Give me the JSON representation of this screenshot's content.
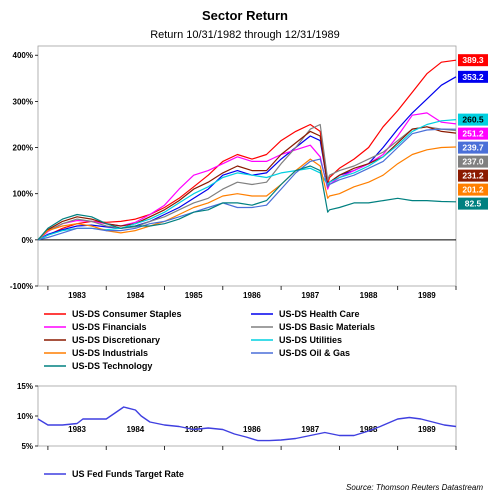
{
  "chart_data": [
    {
      "type": "line",
      "title": "Sector Return",
      "subtitle": "Return 10/31/1982 through 12/31/1989",
      "x_ticks": [
        "1983",
        "1984",
        "1985",
        "1986",
        "1987",
        "1988",
        "1989"
      ],
      "y_ticks": [
        "-100%",
        "0%",
        "100%",
        "200%",
        "300%",
        "400%"
      ],
      "ylim": [
        -100,
        420
      ],
      "xlim": [
        1982.83,
        1990.0
      ],
      "grid": false,
      "legend_position": "bottom",
      "series": [
        {
          "name": "US-DS Consumer Staples",
          "color": "#ff0000",
          "end_label": "389.3",
          "x": [
            1982.83,
            1983.0,
            1983.25,
            1983.5,
            1983.75,
            1984.0,
            1984.25,
            1984.5,
            1984.75,
            1985.0,
            1985.25,
            1985.5,
            1985.75,
            1986.0,
            1986.25,
            1986.5,
            1986.75,
            1987.0,
            1987.25,
            1987.5,
            1987.67,
            1987.8,
            1987.83,
            1988.0,
            1988.25,
            1988.5,
            1988.75,
            1989.0,
            1989.25,
            1989.5,
            1989.75,
            1990.0
          ],
          "y": [
            0,
            10,
            25,
            35,
            40,
            38,
            40,
            45,
            55,
            70,
            90,
            115,
            140,
            170,
            185,
            175,
            185,
            215,
            235,
            250,
            235,
            120,
            135,
            155,
            175,
            200,
            245,
            280,
            320,
            360,
            385,
            389.3
          ]
        },
        {
          "name": "US-DS Health Care",
          "color": "#0000ee",
          "end_label": "353.2",
          "x": [
            1982.83,
            1983.0,
            1983.25,
            1983.5,
            1983.75,
            1984.0,
            1984.25,
            1984.5,
            1984.75,
            1985.0,
            1985.25,
            1985.5,
            1985.75,
            1986.0,
            1986.25,
            1986.5,
            1986.75,
            1987.0,
            1987.25,
            1987.5,
            1987.67,
            1987.8,
            1987.83,
            1988.0,
            1988.25,
            1988.5,
            1988.75,
            1989.0,
            1989.25,
            1989.5,
            1989.75,
            1990.0
          ],
          "y": [
            0,
            12,
            22,
            30,
            32,
            28,
            25,
            30,
            40,
            55,
            70,
            90,
            110,
            140,
            150,
            140,
            145,
            175,
            200,
            225,
            215,
            120,
            125,
            140,
            150,
            165,
            200,
            240,
            275,
            305,
            335,
            353.2
          ]
        },
        {
          "name": "US-DS Financials",
          "color": "#ff00ff",
          "end_label": "251.2",
          "x": [
            1982.83,
            1983.0,
            1983.25,
            1983.5,
            1983.75,
            1984.0,
            1984.25,
            1984.5,
            1984.75,
            1985.0,
            1985.25,
            1985.5,
            1985.75,
            1986.0,
            1986.25,
            1986.5,
            1986.75,
            1987.0,
            1987.25,
            1987.5,
            1987.67,
            1987.8,
            1987.83,
            1988.0,
            1988.25,
            1988.5,
            1988.75,
            1989.0,
            1989.25,
            1989.5,
            1989.75,
            1990.0
          ],
          "y": [
            0,
            18,
            35,
            42,
            40,
            35,
            30,
            38,
            55,
            75,
            110,
            140,
            150,
            165,
            180,
            170,
            170,
            185,
            195,
            205,
            180,
            110,
            120,
            135,
            150,
            165,
            185,
            225,
            270,
            275,
            255,
            251.2
          ]
        },
        {
          "name": "US-DS Basic Materials",
          "color": "#808080",
          "end_label": "237.0",
          "x": [
            1982.83,
            1983.0,
            1983.25,
            1983.5,
            1983.75,
            1984.0,
            1984.25,
            1984.5,
            1984.75,
            1985.0,
            1985.25,
            1985.5,
            1985.75,
            1986.0,
            1986.25,
            1986.5,
            1986.75,
            1987.0,
            1987.25,
            1987.5,
            1987.67,
            1987.8,
            1987.83,
            1988.0,
            1988.25,
            1988.5,
            1988.75,
            1989.0,
            1989.25,
            1989.5,
            1989.75,
            1990.0
          ],
          "y": [
            0,
            20,
            35,
            45,
            40,
            30,
            25,
            28,
            40,
            50,
            65,
            80,
            90,
            110,
            125,
            120,
            125,
            165,
            200,
            240,
            250,
            130,
            140,
            150,
            160,
            175,
            190,
            215,
            240,
            245,
            240,
            237.0
          ]
        },
        {
          "name": "US-DS Discretionary",
          "color": "#8b1a00",
          "end_label": "231.2",
          "x": [
            1982.83,
            1983.0,
            1983.25,
            1983.5,
            1983.75,
            1984.0,
            1984.25,
            1984.5,
            1984.75,
            1985.0,
            1985.25,
            1985.5,
            1985.75,
            1986.0,
            1986.25,
            1986.5,
            1986.75,
            1987.0,
            1987.25,
            1987.5,
            1987.67,
            1987.8,
            1987.83,
            1988.0,
            1988.25,
            1988.5,
            1988.75,
            1989.0,
            1989.25,
            1989.5,
            1989.75,
            1990.0
          ],
          "y": [
            0,
            22,
            40,
            50,
            45,
            35,
            30,
            35,
            50,
            65,
            85,
            110,
            125,
            145,
            160,
            150,
            150,
            185,
            210,
            235,
            225,
            115,
            125,
            140,
            155,
            165,
            180,
            210,
            240,
            245,
            235,
            231.2
          ]
        },
        {
          "name": "US-DS Utilities",
          "color": "#00d0e0",
          "end_label": "260.5",
          "x": [
            1982.83,
            1983.0,
            1983.25,
            1983.5,
            1983.75,
            1984.0,
            1984.25,
            1984.5,
            1984.75,
            1985.0,
            1985.25,
            1985.5,
            1985.75,
            1986.0,
            1986.25,
            1986.5,
            1986.75,
            1987.0,
            1987.25,
            1987.5,
            1987.67,
            1987.8,
            1987.83,
            1988.0,
            1988.25,
            1988.5,
            1988.75,
            1989.0,
            1989.25,
            1989.5,
            1989.75,
            1990.0
          ],
          "y": [
            0,
            10,
            20,
            25,
            25,
            22,
            25,
            35,
            45,
            60,
            80,
            100,
            115,
            135,
            145,
            140,
            135,
            145,
            150,
            155,
            145,
            120,
            125,
            135,
            145,
            160,
            180,
            205,
            235,
            250,
            258,
            260.5
          ]
        },
        {
          "name": "US-DS Industrials",
          "color": "#ff7f00",
          "end_label": "201.2",
          "x": [
            1982.83,
            1983.0,
            1983.25,
            1983.5,
            1983.75,
            1984.0,
            1984.25,
            1984.5,
            1984.75,
            1985.0,
            1985.25,
            1985.5,
            1985.75,
            1986.0,
            1986.25,
            1986.5,
            1986.75,
            1987.0,
            1987.25,
            1987.5,
            1987.67,
            1987.8,
            1987.83,
            1988.0,
            1988.25,
            1988.5,
            1988.75,
            1989.0,
            1989.25,
            1989.5,
            1989.75,
            1990.0
          ],
          "y": [
            0,
            20,
            30,
            35,
            30,
            20,
            15,
            20,
            30,
            40,
            55,
            70,
            80,
            95,
            100,
            95,
            95,
            120,
            150,
            175,
            160,
            90,
            95,
            100,
            115,
            125,
            140,
            165,
            185,
            195,
            200,
            201.2
          ]
        },
        {
          "name": "US-DS Oil & Gas",
          "color": "#4a6fd8",
          "end_label": "239.7",
          "x": [
            1982.83,
            1983.0,
            1983.25,
            1983.5,
            1983.75,
            1984.0,
            1984.25,
            1984.5,
            1984.75,
            1985.0,
            1985.25,
            1985.5,
            1985.75,
            1986.0,
            1986.25,
            1986.5,
            1986.75,
            1987.0,
            1987.25,
            1987.5,
            1987.67,
            1987.8,
            1987.83,
            1988.0,
            1988.25,
            1988.5,
            1988.75,
            1989.0,
            1989.25,
            1989.5,
            1989.75,
            1990.0
          ],
          "y": [
            0,
            5,
            15,
            25,
            25,
            20,
            20,
            25,
            35,
            40,
            50,
            60,
            70,
            80,
            70,
            70,
            75,
            110,
            145,
            170,
            175,
            115,
            120,
            130,
            140,
            155,
            170,
            200,
            230,
            238,
            240,
            239.7
          ]
        },
        {
          "name": "US-DS Technology",
          "color": "#008080",
          "end_label": "82.5",
          "x": [
            1982.83,
            1983.0,
            1983.25,
            1983.5,
            1983.75,
            1984.0,
            1984.25,
            1984.5,
            1984.75,
            1985.0,
            1985.25,
            1985.5,
            1985.75,
            1986.0,
            1986.25,
            1986.5,
            1986.75,
            1987.0,
            1987.25,
            1987.5,
            1987.67,
            1987.8,
            1987.83,
            1988.0,
            1988.25,
            1988.5,
            1988.75,
            1989.0,
            1989.25,
            1989.5,
            1989.75,
            1990.0
          ],
          "y": [
            0,
            25,
            45,
            55,
            50,
            35,
            25,
            30,
            30,
            35,
            45,
            60,
            65,
            80,
            80,
            75,
            85,
            120,
            150,
            160,
            150,
            60,
            65,
            70,
            80,
            80,
            85,
            90,
            85,
            85,
            83,
            82.5
          ]
        }
      ]
    },
    {
      "type": "line",
      "x_ticks": [
        "1983",
        "1984",
        "1985",
        "1986",
        "1987",
        "1988",
        "1989"
      ],
      "y_ticks": [
        "5%",
        "10%",
        "15%"
      ],
      "ylim": [
        5,
        15
      ],
      "xlim": [
        1982.83,
        1990.0
      ],
      "grid": false,
      "legend_position": "bottom",
      "series": [
        {
          "name": "US Fed Funds Target Rate",
          "color": "#3f3fe0",
          "x": [
            1982.83,
            1983.0,
            1983.25,
            1983.5,
            1983.6,
            1984.0,
            1984.15,
            1984.3,
            1984.5,
            1984.6,
            1984.75,
            1985.0,
            1985.25,
            1985.5,
            1985.75,
            1986.0,
            1986.2,
            1986.4,
            1986.6,
            1986.8,
            1987.0,
            1987.25,
            1987.5,
            1987.75,
            1988.0,
            1988.25,
            1988.5,
            1988.7,
            1989.0,
            1989.2,
            1989.4,
            1989.6,
            1989.8,
            1990.0
          ],
          "y": [
            9.5,
            8.5,
            8.5,
            8.75,
            9.5,
            9.5,
            10.5,
            11.5,
            11.0,
            10.0,
            9.0,
            8.5,
            8.25,
            7.75,
            8.0,
            7.75,
            7.0,
            6.5,
            5.9,
            5.9,
            6.0,
            6.25,
            6.75,
            7.25,
            6.75,
            6.75,
            7.5,
            8.25,
            9.5,
            9.75,
            9.5,
            9.0,
            8.5,
            8.25
          ]
        }
      ]
    }
  ],
  "source": "Source: Thomson Reuters Datastream"
}
